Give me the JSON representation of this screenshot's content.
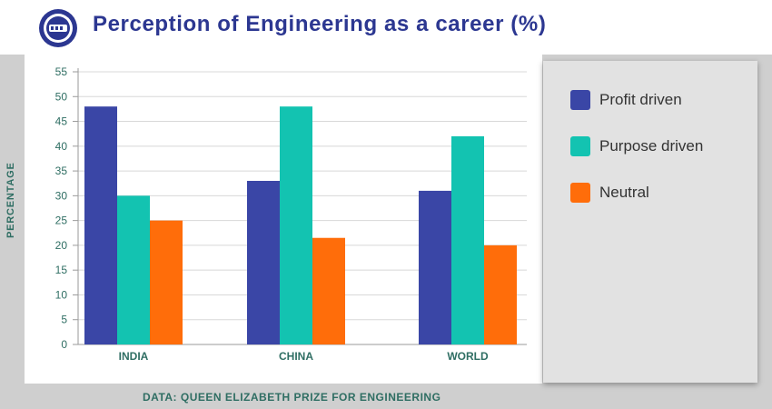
{
  "header": {
    "title": "Perception of Engineering as a career (%)",
    "logo_color": "#2c3791"
  },
  "source_note": "DATA: QUEEN ELIZABETH PRIZE FOR ENGINEERING",
  "colors": {
    "title": "#2c3791",
    "axis_text": "#2f6e63",
    "grid": "#d8d8d8"
  },
  "chart_data": {
    "type": "bar",
    "title": "Perception of Engineering as a career (%)",
    "xlabel": "",
    "ylabel": "PERCENTAGE",
    "categories": [
      "INDIA",
      "CHINA",
      "WORLD"
    ],
    "ylim": [
      0,
      55
    ],
    "yticks": [
      0,
      5,
      10,
      15,
      20,
      25,
      30,
      35,
      40,
      45,
      50,
      55
    ],
    "grid": true,
    "legend_position": "right",
    "series": [
      {
        "name": "Profit driven",
        "color": "#3a46a6",
        "values": [
          48,
          33,
          31
        ]
      },
      {
        "name": "Purpose driven",
        "color": "#13c3b1",
        "values": [
          30,
          48,
          42
        ]
      },
      {
        "name": "Neutral",
        "color": "#ff6d0a",
        "values": [
          25,
          21.5,
          20
        ]
      }
    ]
  }
}
